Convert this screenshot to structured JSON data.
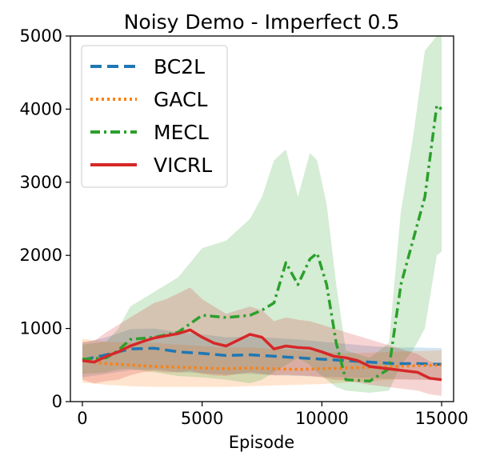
{
  "chart_data": {
    "type": "line",
    "title": "Noisy Demo - Imperfect 0.5",
    "xlabel": "Episode",
    "ylabel": "",
    "xlim": [
      -500,
      15500
    ],
    "ylim": [
      0,
      5000
    ],
    "xticks": [
      0,
      5000,
      10000,
      15000
    ],
    "xtick_labels": [
      "0",
      "5000",
      "10000",
      "15000"
    ],
    "yticks": [
      0,
      1000,
      2000,
      3000,
      4000,
      5000
    ],
    "ytick_labels": [
      "0",
      "1000",
      "2000",
      "3000",
      "4000",
      "5000"
    ],
    "grid": false,
    "legend_position": "top-left",
    "series": [
      {
        "name": "BC2L",
        "color": "#1f77b4",
        "dash": "dashed",
        "x": [
          0,
          1000,
          2000,
          3000,
          4000,
          5000,
          6000,
          7000,
          8000,
          9000,
          10000,
          11000,
          12000,
          13000,
          14000,
          15000
        ],
        "y": [
          570,
          640,
          720,
          730,
          680,
          660,
          630,
          640,
          620,
          600,
          580,
          560,
          540,
          520,
          520,
          510
        ],
        "lower": [
          330,
          380,
          430,
          440,
          400,
          390,
          370,
          380,
          360,
          350,
          340,
          330,
          320,
          310,
          300,
          290
        ],
        "upper": [
          800,
          880,
          990,
          1000,
          950,
          920,
          880,
          890,
          870,
          850,
          820,
          790,
          760,
          740,
          740,
          730
        ]
      },
      {
        "name": "GACL",
        "color": "#ff7f0e",
        "dash": "dotted",
        "x": [
          0,
          1000,
          2000,
          3000,
          4000,
          5000,
          6000,
          7000,
          8000,
          9000,
          10000,
          11000,
          12000,
          13000,
          14000,
          15000
        ],
        "y": [
          560,
          520,
          500,
          480,
          470,
          460,
          450,
          460,
          450,
          440,
          450,
          460,
          470,
          480,
          490,
          500
        ],
        "lower": [
          260,
          230,
          210,
          200,
          200,
          200,
          200,
          210,
          220,
          230,
          240,
          260,
          280,
          300,
          300,
          300
        ],
        "upper": [
          860,
          820,
          810,
          800,
          780,
          760,
          740,
          740,
          720,
          700,
          680,
          660,
          670,
          680,
          690,
          700
        ]
      },
      {
        "name": "MECL",
        "color": "#2ca02c",
        "dash": "dashdot",
        "x": [
          0,
          1000,
          1500,
          2000,
          3000,
          4000,
          5000,
          6000,
          7000,
          7500,
          8000,
          8500,
          9000,
          9500,
          9800,
          10200,
          10600,
          11000,
          12000,
          12800,
          13300,
          13800,
          14300,
          14800,
          15000
        ],
        "y": [
          580,
          600,
          700,
          850,
          880,
          950,
          1180,
          1150,
          1180,
          1250,
          1350,
          1900,
          1600,
          1950,
          2030,
          1600,
          800,
          300,
          280,
          450,
          1600,
          2200,
          2800,
          4050,
          4000
        ],
        "lower": [
          380,
          400,
          440,
          450,
          400,
          350,
          330,
          300,
          250,
          300,
          400,
          500,
          600,
          500,
          400,
          300,
          200,
          150,
          120,
          150,
          500,
          700,
          1000,
          2000,
          2050
        ],
        "upper": [
          780,
          820,
          1000,
          1300,
          1500,
          1700,
          2100,
          2200,
          2500,
          2800,
          3300,
          3450,
          2800,
          3400,
          3300,
          2700,
          1600,
          700,
          600,
          800,
          2600,
          3600,
          4800,
          5100,
          5100
        ]
      },
      {
        "name": "VICRL",
        "color": "#d62728",
        "dash": "solid",
        "x": [
          0,
          500,
          1000,
          1500,
          2000,
          2500,
          3000,
          3500,
          4000,
          4500,
          5000,
          5500,
          6000,
          6500,
          7000,
          7500,
          8000,
          8500,
          9000,
          9500,
          10000,
          10500,
          11000,
          11500,
          12000,
          12500,
          13000,
          13500,
          14000,
          14500,
          15000
        ],
        "y": [
          560,
          540,
          620,
          680,
          760,
          820,
          870,
          900,
          930,
          980,
          880,
          800,
          760,
          840,
          920,
          880,
          720,
          760,
          740,
          730,
          680,
          620,
          600,
          560,
          480,
          460,
          440,
          420,
          400,
          320,
          300
        ],
        "lower": [
          300,
          250,
          280,
          300,
          360,
          400,
          420,
          400,
          400,
          420,
          380,
          360,
          350,
          380,
          400,
          380,
          360,
          370,
          360,
          350,
          330,
          300,
          290,
          260,
          230,
          210,
          190,
          170,
          150,
          100,
          80
        ],
        "upper": [
          820,
          830,
          950,
          1050,
          1150,
          1250,
          1350,
          1400,
          1480,
          1560,
          1400,
          1300,
          1200,
          1250,
          1300,
          1250,
          1100,
          1150,
          1120,
          1100,
          1050,
          1000,
          950,
          900,
          850,
          800,
          750,
          700,
          650,
          550,
          500
        ]
      }
    ]
  }
}
